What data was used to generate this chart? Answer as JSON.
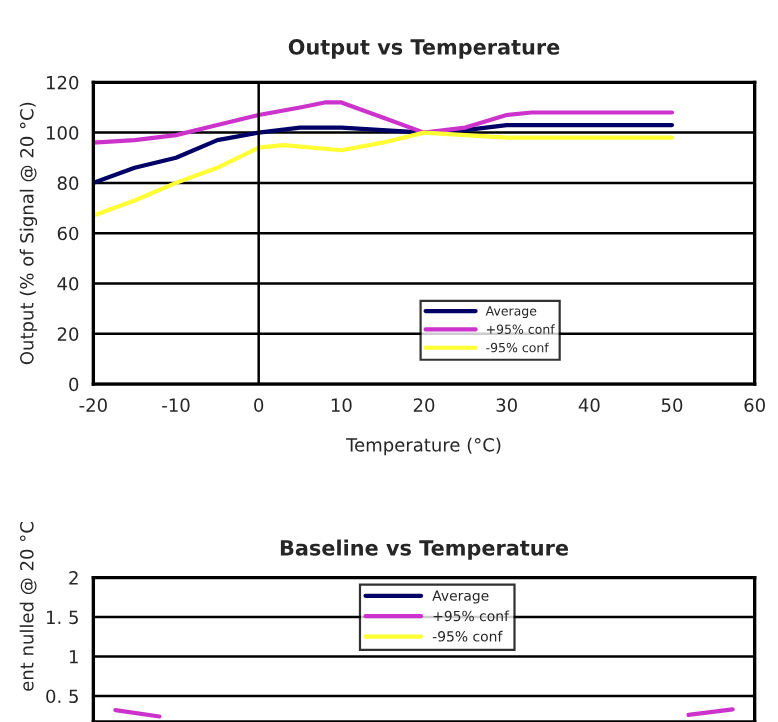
{
  "chart_data": [
    {
      "type": "line",
      "title": "Output vs Temperature",
      "xlabel": "Temperature (°C)",
      "ylabel": "Output (% of Signal @ 20 °C)",
      "xlim": [
        -20,
        60
      ],
      "xticks": [
        -20,
        -10,
        0,
        10,
        20,
        30,
        40,
        50,
        60
      ],
      "ylim": [
        0,
        120
      ],
      "yticks": [
        0,
        20,
        40,
        60,
        80,
        100,
        120
      ],
      "grid": "y",
      "legend": "bottom",
      "ref_lines": [
        {
          "axis": "x",
          "value": 0,
          "color": "#000000"
        }
      ],
      "series": [
        {
          "name": "Average",
          "color": "#000066",
          "x": [
            -20,
            -15,
            -10,
            -5,
            0,
            5,
            10,
            15,
            20,
            25,
            30,
            40,
            50
          ],
          "values": [
            80,
            86,
            90,
            97,
            100,
            102,
            102,
            101,
            100,
            101,
            103,
            103,
            103
          ]
        },
        {
          "name": "+95% conf",
          "color": "#cc33cc",
          "x": [
            -20,
            -15,
            -10,
            -5,
            0,
            5,
            8,
            10,
            15,
            20,
            25,
            30,
            33,
            40,
            50
          ],
          "values": [
            96,
            97,
            99,
            103,
            107,
            110,
            112,
            112,
            106,
            100,
            102,
            107,
            108,
            108,
            108
          ]
        },
        {
          "name": "-95% conf",
          "color": "#ffff33",
          "x": [
            -20,
            -15,
            -10,
            -5,
            0,
            3,
            10,
            15,
            20,
            25,
            30,
            50
          ],
          "values": [
            67,
            73,
            80,
            86,
            94,
            95,
            93,
            96,
            100,
            99,
            98,
            98
          ]
        }
      ]
    },
    {
      "type": "line",
      "title": "Baseline vs Temperature",
      "ylabel": "ent nulled @ 20 °C",
      "categories": [
        null,
        null,
        null,
        null,
        null,
        null,
        null,
        null,
        null,
        null,
        null,
        null,
        null,
        null,
        null
      ],
      "ylim": [
        0.17,
        2
      ],
      "yticks": [
        {
          "value": 0.5,
          "label": "0. 5"
        },
        1,
        {
          "value": 1.5,
          "label": "1. 5"
        },
        2
      ],
      "grid": "y",
      "legend": "top",
      "tick_labels": "y",
      "series": [
        {
          "name": "Average",
          "color": "#000066",
          "values": [
            null,
            null,
            null,
            null,
            null,
            null,
            null,
            null,
            null,
            null,
            null,
            null,
            null,
            null,
            null
          ]
        },
        {
          "name": "+95% conf",
          "color": "#cc33cc",
          "values": [
            0.32,
            0.24,
            null,
            null,
            null,
            null,
            null,
            null,
            null,
            null,
            null,
            null,
            null,
            0.26,
            0.33
          ]
        },
        {
          "name": "-95% conf",
          "color": "#ffff33",
          "values": [
            null,
            null,
            null,
            null,
            null,
            null,
            null,
            null,
            null,
            null,
            null,
            null,
            null,
            null,
            null
          ]
        }
      ]
    }
  ]
}
